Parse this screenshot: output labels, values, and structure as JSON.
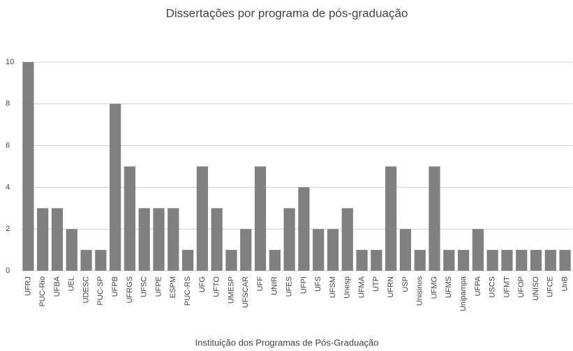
{
  "chart_data": {
    "type": "bar",
    "title": "Dissertações por programa de pós-graduação",
    "x_label": "Instituição dos Programas de Pós-Graduação",
    "categories": [
      "UFRJ",
      "PUC-Rio",
      "UFBA",
      "UEL",
      "UDESC",
      "PUC-SP",
      "UFPB",
      "UFRGS",
      "UFSC",
      "UFPE",
      "ESPM",
      "PUC-RS",
      "UFG",
      "UFTO",
      "UMESP",
      "UFSCAR",
      "UFF",
      "UNIR",
      "UFES",
      "UFPI",
      "UFS",
      "UFSM",
      "Unesp",
      "UFMA",
      "UTP",
      "UFRN",
      "USP",
      "Unisinos",
      "UFMG",
      "UFMS",
      "Unipampa",
      "UFPA",
      "USCS",
      "UFMT",
      "UFOP",
      "UNISO",
      "UFCE",
      "UnB"
    ],
    "values": [
      10,
      3,
      3,
      2,
      1,
      1,
      8,
      5,
      3,
      3,
      3,
      1,
      5,
      3,
      1,
      2,
      5,
      1,
      3,
      4,
      2,
      2,
      3,
      1,
      1,
      5,
      2,
      1,
      5,
      1,
      1,
      2,
      1,
      1,
      1,
      1,
      1,
      1
    ],
    "color": "#808080",
    "ylim": [
      0,
      10
    ],
    "yticks": [
      0,
      2,
      4,
      6,
      8,
      10
    ],
    "grid": true
  }
}
